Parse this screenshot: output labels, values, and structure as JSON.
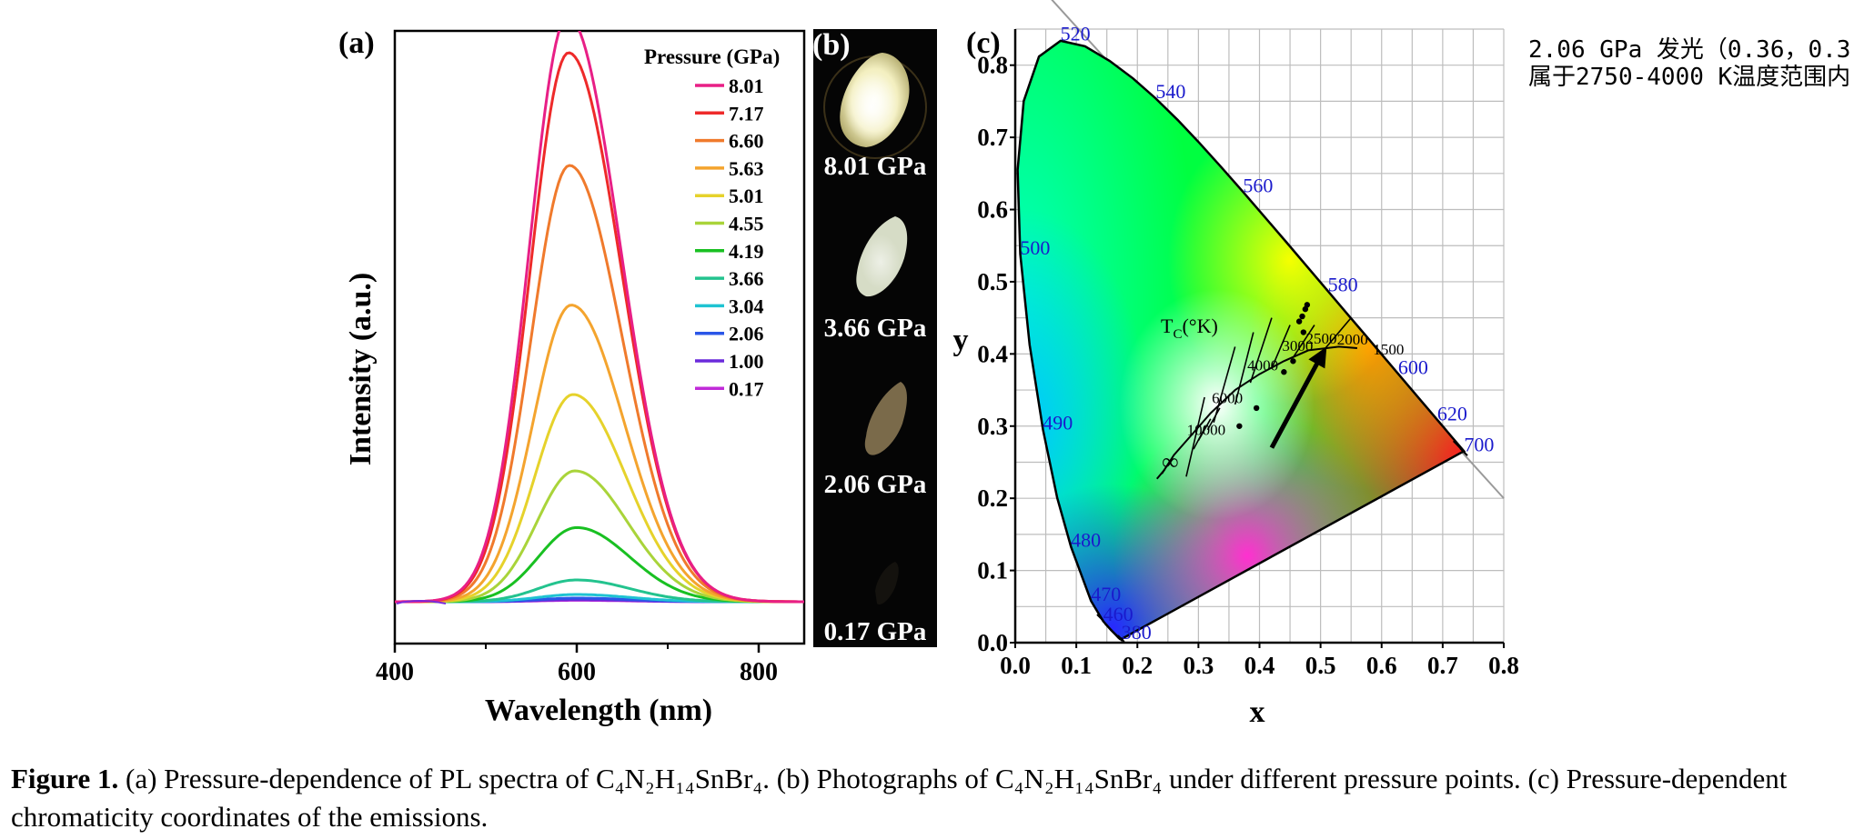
{
  "chart_data": [
    {
      "id": "a",
      "type": "line",
      "panel_label": "(a)",
      "xlabel": "Wavelength (nm)",
      "ylabel": "Intensity (a.u.)",
      "xlim": [
        400,
        850
      ],
      "xticks": [
        400,
        600,
        800
      ],
      "legend_title": "Pressure (GPa)",
      "legend_position": "top-right",
      "peak_center_nm": 590,
      "series": [
        {
          "name": "8.01",
          "color": "#e81f86",
          "peak": 0.805,
          "center": 590
        },
        {
          "name": "7.17",
          "color": "#ee2a2a",
          "peak": 0.755,
          "center": 591
        },
        {
          "name": "6.60",
          "color": "#f07a2c",
          "peak": 0.6,
          "center": 592
        },
        {
          "name": "5.63",
          "color": "#f4a42e",
          "peak": 0.408,
          "center": 594
        },
        {
          "name": "5.01",
          "color": "#e6d22b",
          "peak": 0.285,
          "center": 596
        },
        {
          "name": "4.55",
          "color": "#a9d43a",
          "peak": 0.18,
          "center": 598
        },
        {
          "name": "4.19",
          "color": "#19c022",
          "peak": 0.102,
          "center": 600
        },
        {
          "name": "3.66",
          "color": "#23c38e",
          "peak": 0.03,
          "center": 600
        },
        {
          "name": "3.04",
          "color": "#1fc3d2",
          "peak": 0.01,
          "center": 600
        },
        {
          "name": "2.06",
          "color": "#2a56e8",
          "peak": 0.005,
          "center": 600
        },
        {
          "name": "1.00",
          "color": "#6a2adb",
          "peak": 0.003,
          "center": 600
        },
        {
          "name": "0.17",
          "color": "#c02ad8",
          "peak": 0.002,
          "center": 600
        }
      ]
    },
    {
      "id": "c",
      "type": "scatter",
      "panel_label": "(c)",
      "xlabel": "x",
      "ylabel": "y",
      "xlim": [
        0.0,
        0.8
      ],
      "ylim": [
        0.0,
        0.85
      ],
      "xticks": [
        "0.0",
        "0.1",
        "0.2",
        "0.3",
        "0.4",
        "0.5",
        "0.6",
        "0.7",
        "0.8"
      ],
      "yticks": [
        "0.0",
        "0.1",
        "0.2",
        "0.3",
        "0.4",
        "0.5",
        "0.6",
        "0.7",
        "0.8"
      ],
      "grid": true,
      "wavelength_labels": [
        {
          "text": "520",
          "x": 0.074,
          "y": 0.834
        },
        {
          "text": "540",
          "x": 0.23,
          "y": 0.754
        },
        {
          "text": "560",
          "x": 0.373,
          "y": 0.624
        },
        {
          "text": "580",
          "x": 0.512,
          "y": 0.487
        },
        {
          "text": "600",
          "x": 0.627,
          "y": 0.372
        },
        {
          "text": "620",
          "x": 0.691,
          "y": 0.308
        },
        {
          "text": "700",
          "x": 0.735,
          "y": 0.265
        },
        {
          "text": "500",
          "x": 0.008,
          "y": 0.538
        },
        {
          "text": "490",
          "x": 0.045,
          "y": 0.295
        },
        {
          "text": "480",
          "x": 0.091,
          "y": 0.133
        },
        {
          "text": "470",
          "x": 0.124,
          "y": 0.058
        },
        {
          "text": "460",
          "x": 0.144,
          "y": 0.03
        },
        {
          "text": "380",
          "x": 0.174,
          "y": 0.005
        }
      ],
      "planckian_label": "T",
      "planckian_label_sub": "C",
      "planckian_label_unit": "(°K)",
      "isotherm_labels": [
        {
          "text": "10000",
          "x": 0.281,
          "y": 0.288
        },
        {
          "text": "6000",
          "x": 0.322,
          "y": 0.332
        },
        {
          "text": "4000",
          "x": 0.38,
          "y": 0.377
        },
        {
          "text": "3000",
          "x": 0.437,
          "y": 0.404
        },
        {
          "text": "2500",
          "x": 0.476,
          "y": 0.414
        },
        {
          "text": "2000",
          "x": 0.527,
          "y": 0.413
        },
        {
          "text": "1500",
          "x": 0.586,
          "y": 0.399
        },
        {
          "text": "∞",
          "x": 0.24,
          "y": 0.24
        }
      ],
      "points": [
        {
          "x": 0.367,
          "y": 0.3
        },
        {
          "x": 0.395,
          "y": 0.325
        },
        {
          "x": 0.44,
          "y": 0.375
        },
        {
          "x": 0.455,
          "y": 0.39
        },
        {
          "x": 0.472,
          "y": 0.43
        },
        {
          "x": 0.465,
          "y": 0.445
        },
        {
          "x": 0.47,
          "y": 0.452
        },
        {
          "x": 0.475,
          "y": 0.462
        },
        {
          "x": 0.478,
          "y": 0.468
        }
      ],
      "arrow": {
        "from": [
          0.42,
          0.27
        ],
        "to": [
          0.51,
          0.41
        ]
      }
    }
  ],
  "panel_b": {
    "label": "(b)",
    "photos": [
      {
        "pressure_label": "8.01 GPa",
        "brightness": 1.0
      },
      {
        "pressure_label": "3.66 GPa",
        "brightness": 0.7
      },
      {
        "pressure_label": "2.06 GPa",
        "brightness": 0.35
      },
      {
        "pressure_label": "0.17 GPa",
        "brightness": 0.05
      }
    ]
  },
  "note": {
    "line1": "2.06 GPa 发光（0.36，0.3",
    "line2": "属于2750-4000 K温度范围内"
  },
  "caption": {
    "figure_number": "Figure 1.",
    "text": "(a) Pressure-dependence of PL spectra of C₄N₂H₁₄SnBr₄. (b) Photographs of C₄N₂H₁₄SnBr₄ under different pressure points. (c) Pressure-dependent chromaticity coordinates of the emissions."
  }
}
